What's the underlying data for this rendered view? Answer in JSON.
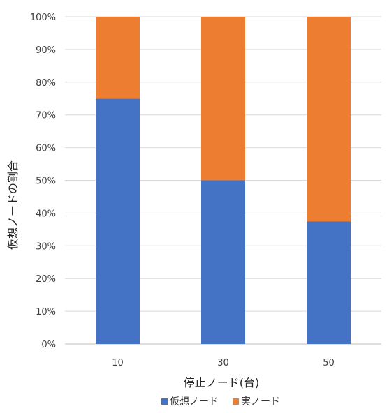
{
  "chart_data": {
    "type": "bar",
    "stacked": true,
    "percent_stacked": true,
    "categories": [
      "10",
      "30",
      "50"
    ],
    "series": [
      {
        "name": "仮想ノード",
        "values": [
          75,
          50,
          37.5
        ],
        "color": "#4472C4"
      },
      {
        "name": "実ノード",
        "values": [
          25,
          50,
          62.5
        ],
        "color": "#ED7D31"
      }
    ],
    "title": "",
    "xlabel": "停止ノード(台)",
    "ylabel": "仮想ノードの割合",
    "ylim": [
      0,
      100
    ],
    "yticks": [
      "0%",
      "10%",
      "20%",
      "30%",
      "40%",
      "50%",
      "60%",
      "70%",
      "80%",
      "90%",
      "100%"
    ],
    "grid": true,
    "legend": "bottom"
  }
}
